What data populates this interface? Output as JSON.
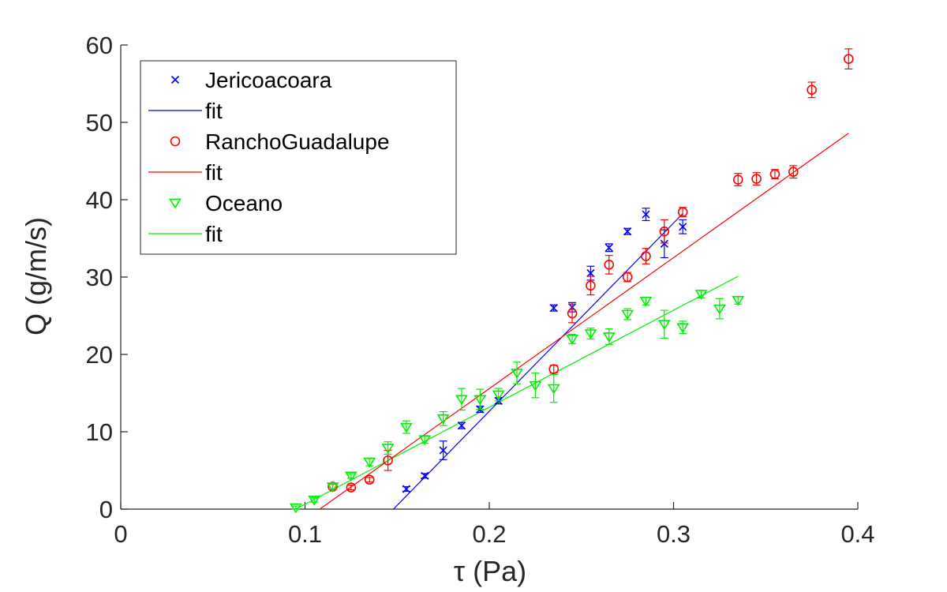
{
  "chart_data": {
    "type": "scatter",
    "xlabel": "τ (Pa)",
    "ylabel": "Q (g/m/s)",
    "xlim": [
      0,
      0.4
    ],
    "ylim": [
      0,
      60
    ],
    "xticks": [
      0,
      0.1,
      0.2,
      0.3,
      0.4
    ],
    "xtick_labels": [
      "0",
      "0.1",
      "0.2",
      "0.3",
      "0.4"
    ],
    "yticks": [
      0,
      10,
      20,
      30,
      40,
      50,
      60
    ],
    "ytick_labels": [
      "0",
      "10",
      "20",
      "30",
      "40",
      "50",
      "60"
    ],
    "grid": false,
    "legend_position": "top-left",
    "series": [
      {
        "name": "Jericoacoara",
        "marker": "x",
        "color": "#0000ff",
        "points": [
          {
            "x": 0.155,
            "y": 2.6,
            "err": 0.3
          },
          {
            "x": 0.165,
            "y": 4.3,
            "err": 0.3
          },
          {
            "x": 0.175,
            "y": 7.6,
            "err": 1.2
          },
          {
            "x": 0.185,
            "y": 10.8,
            "err": 0.4
          },
          {
            "x": 0.195,
            "y": 12.9,
            "err": 0.4
          },
          {
            "x": 0.205,
            "y": 14.0,
            "err": 0.4
          },
          {
            "x": 0.235,
            "y": 26.0,
            "err": 0.4
          },
          {
            "x": 0.245,
            "y": 26.1,
            "err": 0.6
          },
          {
            "x": 0.255,
            "y": 30.5,
            "err": 0.9
          },
          {
            "x": 0.265,
            "y": 33.8,
            "err": 0.5
          },
          {
            "x": 0.275,
            "y": 35.9,
            "err": 0.4
          },
          {
            "x": 0.285,
            "y": 38.1,
            "err": 0.8
          },
          {
            "x": 0.295,
            "y": 34.3,
            "err": 1.8
          },
          {
            "x": 0.305,
            "y": 36.5,
            "err": 0.9
          }
        ],
        "fit": {
          "name": "fit",
          "x": [
            0.148,
            0.305
          ],
          "y": [
            0,
            38.2
          ]
        }
      },
      {
        "name": "RanchoGuadalupe",
        "marker": "o",
        "color": "#ff0000",
        "points": [
          {
            "x": 0.115,
            "y": 2.9,
            "err": 0.3
          },
          {
            "x": 0.125,
            "y": 2.8,
            "err": 0.3
          },
          {
            "x": 0.135,
            "y": 3.8,
            "err": 0.3
          },
          {
            "x": 0.145,
            "y": 6.3,
            "err": 1.3
          },
          {
            "x": 0.235,
            "y": 18.1,
            "err": 0.5
          },
          {
            "x": 0.245,
            "y": 25.3,
            "err": 1.2
          },
          {
            "x": 0.255,
            "y": 28.9,
            "err": 1.2
          },
          {
            "x": 0.265,
            "y": 31.6,
            "err": 1.2
          },
          {
            "x": 0.275,
            "y": 30.0,
            "err": 0.6
          },
          {
            "x": 0.285,
            "y": 32.7,
            "err": 1.0
          },
          {
            "x": 0.295,
            "y": 35.9,
            "err": 1.5
          },
          {
            "x": 0.305,
            "y": 38.4,
            "err": 0.6
          },
          {
            "x": 0.335,
            "y": 42.6,
            "err": 0.8
          },
          {
            "x": 0.345,
            "y": 42.7,
            "err": 0.8
          },
          {
            "x": 0.355,
            "y": 43.3,
            "err": 0.6
          },
          {
            "x": 0.365,
            "y": 43.6,
            "err": 0.8
          },
          {
            "x": 0.375,
            "y": 54.2,
            "err": 1.0
          },
          {
            "x": 0.395,
            "y": 58.2,
            "err": 1.3
          }
        ],
        "fit": {
          "name": "fit",
          "x": [
            0.108,
            0.395
          ],
          "y": [
            0,
            48.6
          ]
        }
      },
      {
        "name": "Oceano",
        "marker": "v",
        "color": "#00ee00",
        "points": [
          {
            "x": 0.095,
            "y": 0.2,
            "err": 0.2
          },
          {
            "x": 0.105,
            "y": 1.2,
            "err": 0.3
          },
          {
            "x": 0.115,
            "y": 2.9,
            "err": 0.3
          },
          {
            "x": 0.125,
            "y": 4.3,
            "err": 0.3
          },
          {
            "x": 0.135,
            "y": 6.1,
            "err": 0.5
          },
          {
            "x": 0.145,
            "y": 7.9,
            "err": 0.8
          },
          {
            "x": 0.155,
            "y": 10.6,
            "err": 0.8
          },
          {
            "x": 0.165,
            "y": 9.0,
            "err": 0.5
          },
          {
            "x": 0.175,
            "y": 11.7,
            "err": 0.9
          },
          {
            "x": 0.185,
            "y": 14.2,
            "err": 1.4
          },
          {
            "x": 0.195,
            "y": 14.2,
            "err": 1.3
          },
          {
            "x": 0.205,
            "y": 14.8,
            "err": 0.8
          },
          {
            "x": 0.215,
            "y": 17.6,
            "err": 1.4
          },
          {
            "x": 0.225,
            "y": 16.0,
            "err": 1.6
          },
          {
            "x": 0.235,
            "y": 15.6,
            "err": 1.8
          },
          {
            "x": 0.245,
            "y": 22.0,
            "err": 0.6
          },
          {
            "x": 0.255,
            "y": 22.7,
            "err": 0.7
          },
          {
            "x": 0.265,
            "y": 22.3,
            "err": 1.0
          },
          {
            "x": 0.275,
            "y": 25.2,
            "err": 0.7
          },
          {
            "x": 0.285,
            "y": 26.9,
            "err": 0.5
          },
          {
            "x": 0.295,
            "y": 23.9,
            "err": 1.8
          },
          {
            "x": 0.305,
            "y": 23.5,
            "err": 0.8
          },
          {
            "x": 0.315,
            "y": 27.8,
            "err": 0.5
          },
          {
            "x": 0.325,
            "y": 25.9,
            "err": 1.3
          },
          {
            "x": 0.335,
            "y": 27.0,
            "err": 0.5
          }
        ],
        "fit": {
          "name": "fit",
          "x": [
            0.095,
            0.335
          ],
          "y": [
            0,
            30.1
          ]
        }
      }
    ]
  }
}
